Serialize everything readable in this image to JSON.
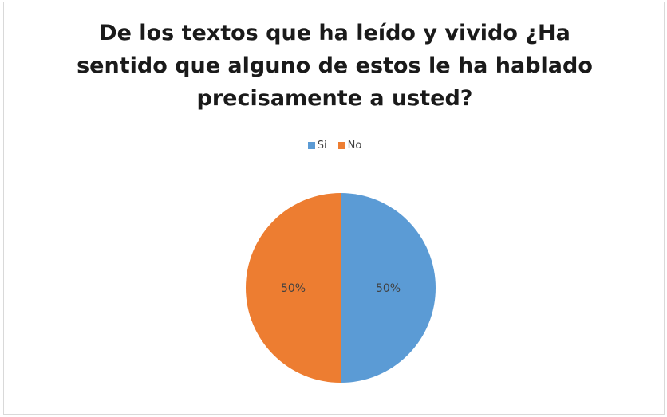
{
  "chart_data": {
    "type": "pie",
    "title": "De los textos que ha leído y vivido ¿Ha sentido que alguno de estos le ha hablado precisamente a usted?",
    "legend_position": "top",
    "slices": [
      {
        "label": "Si",
        "value": 50,
        "percent_label": "50%",
        "color": "#5b9bd5"
      },
      {
        "label": "No",
        "value": 50,
        "percent_label": "50%",
        "color": "#ed7d31"
      }
    ]
  }
}
